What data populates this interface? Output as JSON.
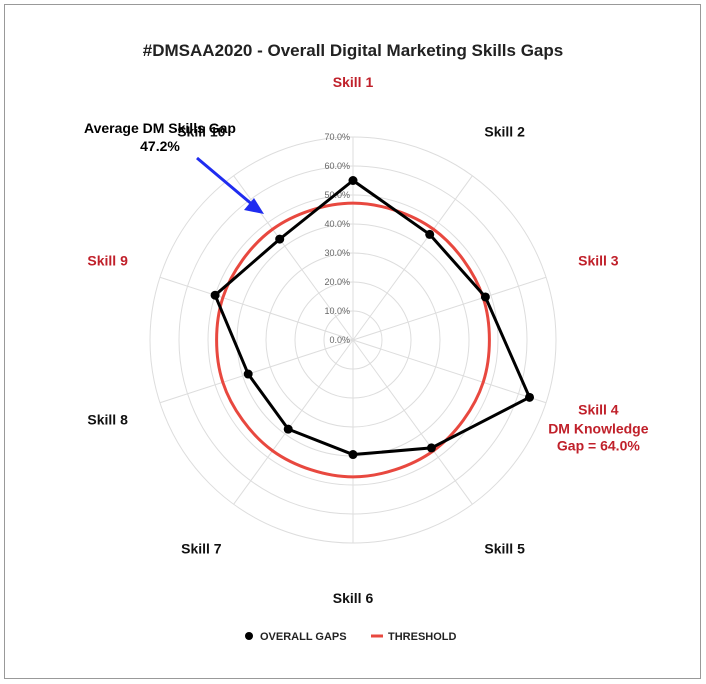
{
  "chart_data": {
    "type": "radar",
    "title": "#DMSAA2020 - Overall Digital Marketing Skills Gaps",
    "categories": [
      "Skill 1",
      "Skill 2",
      "Skill 3",
      "Skill 4",
      "Skill 5",
      "Skill 6",
      "Skill 7",
      "Skill 8",
      "Skill 9",
      "Skill 10"
    ],
    "highlighted_categories": [
      "Skill 1",
      "Skill 3",
      "Skill 4",
      "Skill 9"
    ],
    "category_notes": {
      "Skill 4": [
        "DM Knowledge",
        "Gap = 64.0%"
      ]
    },
    "rlim": [
      0,
      70
    ],
    "ticks": [
      "0.0%",
      "10.0%",
      "20.0%",
      "30.0%",
      "40.0%",
      "50.0%",
      "60.0%",
      "70.0%"
    ],
    "series": [
      {
        "name": "OVERALL GAPS",
        "color": "#000000",
        "marker": "circle",
        "values": [
          55.0,
          45.0,
          48.0,
          64.0,
          46.0,
          39.5,
          38.0,
          38.0,
          50.0,
          43.0
        ]
      },
      {
        "name": "THRESHOLD",
        "color": "#e8483f",
        "marker": "none",
        "values": [
          47.2,
          47.2,
          47.2,
          47.2,
          47.2,
          47.2,
          47.2,
          47.2,
          47.2,
          47.2
        ]
      }
    ],
    "annotation": {
      "label": "Average DM Skills Gap",
      "value": "47.2%"
    },
    "colors": {
      "highlight": "#c0202a",
      "normal": "#111111",
      "arrow": "#1f2cf0",
      "grid": "#dddddd"
    },
    "legend": "bottom",
    "grid": true
  }
}
